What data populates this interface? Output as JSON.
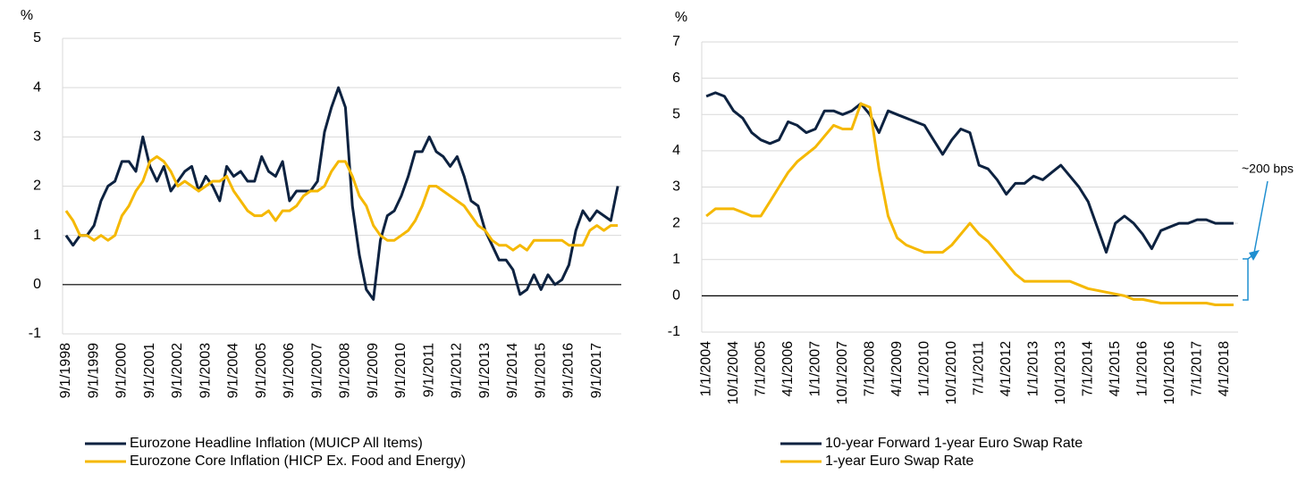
{
  "chart_data": [
    {
      "type": "line",
      "y_label": "%",
      "categories": [
        "9/1/1998",
        null,
        null,
        null,
        "9/1/1999",
        null,
        null,
        null,
        "9/1/2000",
        null,
        null,
        null,
        "9/1/2001",
        null,
        null,
        null,
        "9/1/2002",
        null,
        null,
        null,
        "9/1/2003",
        null,
        null,
        null,
        "9/1/2004",
        null,
        null,
        null,
        "9/1/2005",
        null,
        null,
        null,
        "9/1/2006",
        null,
        null,
        null,
        "9/1/2007",
        null,
        null,
        null,
        "9/1/2008",
        null,
        null,
        null,
        "9/1/2009",
        null,
        null,
        null,
        "9/1/2010",
        null,
        null,
        null,
        "9/1/2011",
        null,
        null,
        null,
        "9/1/2012",
        null,
        null,
        null,
        "9/1/2013",
        null,
        null,
        null,
        "9/1/2014",
        null,
        null,
        null,
        "9/1/2015",
        null,
        null,
        null,
        "9/1/2016",
        null,
        null,
        null,
        "9/1/2017",
        null,
        null,
        null
      ],
      "series": [
        {
          "name": "Eurozone Headline Inflation (MUICP All Items)",
          "color": "#0d2240",
          "values": [
            1.0,
            0.8,
            1.0,
            1.0,
            1.2,
            1.7,
            2.0,
            2.1,
            2.5,
            2.5,
            2.3,
            3.0,
            2.4,
            2.1,
            2.4,
            1.9,
            2.1,
            2.3,
            2.4,
            1.9,
            2.2,
            2.0,
            1.7,
            2.4,
            2.2,
            2.3,
            2.1,
            2.1,
            2.6,
            2.3,
            2.2,
            2.5,
            1.7,
            1.9,
            1.9,
            1.9,
            2.1,
            3.1,
            3.6,
            4.0,
            3.6,
            1.6,
            0.6,
            -0.1,
            -0.3,
            0.9,
            1.4,
            1.5,
            1.8,
            2.2,
            2.7,
            2.7,
            3.0,
            2.7,
            2.6,
            2.4,
            2.6,
            2.2,
            1.7,
            1.6,
            1.1,
            0.8,
            0.5,
            0.5,
            0.3,
            -0.2,
            -0.1,
            0.2,
            -0.1,
            0.2,
            0.0,
            0.1,
            0.4,
            1.1,
            1.5,
            1.3,
            1.5,
            1.4,
            1.3,
            2.0
          ]
        },
        {
          "name": "Eurozone Core Inflation (HICP Ex. Food and Energy)",
          "color": "#f5b800",
          "values": [
            1.5,
            1.3,
            1.0,
            1.0,
            0.9,
            1.0,
            0.9,
            1.0,
            1.4,
            1.6,
            1.9,
            2.1,
            2.5,
            2.6,
            2.5,
            2.3,
            2.0,
            2.1,
            2.0,
            1.9,
            2.0,
            2.1,
            2.1,
            2.2,
            1.9,
            1.7,
            1.5,
            1.4,
            1.4,
            1.5,
            1.3,
            1.5,
            1.5,
            1.6,
            1.8,
            1.9,
            1.9,
            2.0,
            2.3,
            2.5,
            2.5,
            2.2,
            1.8,
            1.6,
            1.2,
            1.0,
            0.9,
            0.9,
            1.0,
            1.1,
            1.3,
            1.6,
            2.0,
            2.0,
            1.9,
            1.8,
            1.7,
            1.6,
            1.4,
            1.2,
            1.1,
            0.9,
            0.8,
            0.8,
            0.7,
            0.8,
            0.7,
            0.9,
            0.9,
            0.9,
            0.9,
            0.9,
            0.8,
            0.8,
            0.8,
            1.1,
            1.2,
            1.1,
            1.2,
            1.2
          ]
        }
      ],
      "ylim": [
        -1,
        5
      ],
      "yticks": [
        -1,
        0,
        1,
        2,
        3,
        4,
        5
      ],
      "grid": true,
      "zero_line": true,
      "legend": "bottom"
    },
    {
      "type": "line",
      "y_label": "%",
      "annotation": "~200 bps",
      "categories": [
        "1/1/2004",
        null,
        null,
        "10/1/2004",
        null,
        null,
        "7/1/2005",
        null,
        null,
        "4/1/2006",
        null,
        null,
        "1/1/2007",
        null,
        null,
        "10/1/2007",
        null,
        null,
        "7/1/2008",
        null,
        null,
        "4/1/2009",
        null,
        null,
        "1/1/2010",
        null,
        null,
        "10/1/2010",
        null,
        null,
        "7/1/2011",
        null,
        null,
        "4/1/2012",
        null,
        null,
        "1/1/2013",
        null,
        null,
        "10/1/2013",
        null,
        null,
        "7/1/2014",
        null,
        null,
        "4/1/2015",
        null,
        null,
        "1/1/2016",
        null,
        null,
        "10/1/2016",
        null,
        null,
        "7/1/2017",
        null,
        null,
        "4/1/2018",
        null
      ],
      "series": [
        {
          "name": "10-year Forward 1-year Euro Swap Rate",
          "color": "#0d2240",
          "values": [
            5.5,
            5.6,
            5.5,
            5.1,
            4.9,
            4.5,
            4.3,
            4.2,
            4.3,
            4.8,
            4.7,
            4.5,
            4.6,
            5.1,
            5.1,
            5.0,
            5.1,
            5.3,
            5.0,
            4.5,
            5.1,
            5.0,
            4.9,
            4.8,
            4.7,
            4.3,
            3.9,
            4.3,
            4.6,
            4.5,
            3.6,
            3.5,
            3.2,
            2.8,
            3.1,
            3.1,
            3.3,
            3.2,
            3.4,
            3.6,
            3.3,
            3.0,
            2.6,
            1.9,
            1.2,
            2.0,
            2.2,
            2.0,
            1.7,
            1.3,
            1.8,
            1.9,
            2.0,
            2.0,
            2.1,
            2.1,
            2.0,
            2.0,
            2.0
          ]
        },
        {
          "name": "1-year Euro Swap Rate",
          "color": "#f5b800",
          "values": [
            2.2,
            2.4,
            2.4,
            2.4,
            2.3,
            2.2,
            2.2,
            2.6,
            3.0,
            3.4,
            3.7,
            3.9,
            4.1,
            4.4,
            4.7,
            4.6,
            4.6,
            5.3,
            5.2,
            3.5,
            2.2,
            1.6,
            1.4,
            1.3,
            1.2,
            1.2,
            1.2,
            1.4,
            1.7,
            2.0,
            1.7,
            1.5,
            1.2,
            0.9,
            0.6,
            0.4,
            0.4,
            0.4,
            0.4,
            0.4,
            0.4,
            0.3,
            0.2,
            0.15,
            0.1,
            0.05,
            0.0,
            -0.1,
            -0.1,
            -0.15,
            -0.2,
            -0.2,
            -0.2,
            -0.2,
            -0.2,
            -0.2,
            -0.25,
            -0.25,
            -0.25
          ]
        }
      ],
      "ylim": [
        -1,
        7
      ],
      "yticks": [
        -1,
        0,
        1,
        2,
        3,
        4,
        5,
        6,
        7
      ],
      "grid": true,
      "zero_line": true,
      "legend": "bottom"
    }
  ]
}
